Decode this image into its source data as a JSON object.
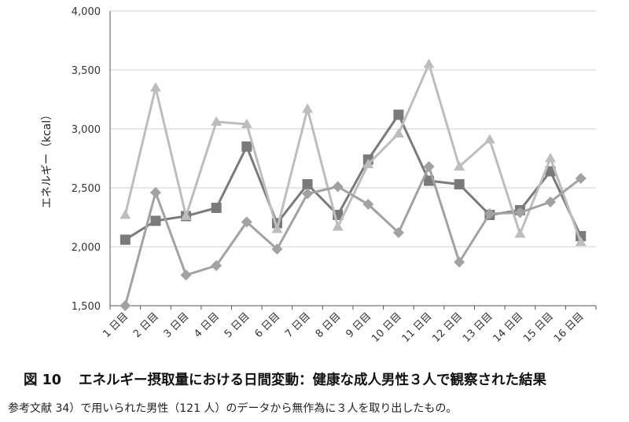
{
  "figure": {
    "number": "図 10",
    "title": "エネルギー摂取量における日間変動：健康な成人男性３人で観察された結果",
    "note": "参考文献 34）で用いられた男性（121 人）のデータから無作為に３人を取り出したもの。"
  },
  "chart_data": {
    "type": "line",
    "ylabel": "エネルギー（kcal）",
    "xlabel": "",
    "ylim": [
      1500,
      4000
    ],
    "yticks": [
      "1,500",
      "2,000",
      "2,500",
      "3,000",
      "3,500",
      "4,000"
    ],
    "ytick_values": [
      1500,
      2000,
      2500,
      3000,
      3500,
      4000
    ],
    "grid": true,
    "categories": [
      "1 日目",
      "2 日目",
      "3 日目",
      "4 日目",
      "5 日目",
      "6 日目",
      "7 日目",
      "8 日目",
      "9 日目",
      "10 日目",
      "11 日目",
      "12 日目",
      "13 日目",
      "14 日目",
      "15 日目",
      "16 日目"
    ],
    "series": [
      {
        "marker": "square",
        "color": "#7a7a7a",
        "values": [
          2060,
          2220,
          2260,
          2330,
          2850,
          2200,
          2530,
          2270,
          2740,
          3120,
          2560,
          2530,
          2270,
          2310,
          2640,
          2090
        ]
      },
      {
        "marker": "triangle",
        "color": "#bdbdbd",
        "values": [
          2270,
          3350,
          2260,
          3060,
          3040,
          2150,
          3170,
          2170,
          2700,
          2960,
          3550,
          2680,
          2910,
          2110,
          2750,
          2040
        ]
      },
      {
        "marker": "diamond",
        "color": "#a2a2a2",
        "values": [
          1500,
          2460,
          1760,
          1840,
          2210,
          1980,
          2450,
          2510,
          2360,
          2120,
          2680,
          1870,
          2280,
          2290,
          2380,
          2580
        ]
      }
    ]
  }
}
